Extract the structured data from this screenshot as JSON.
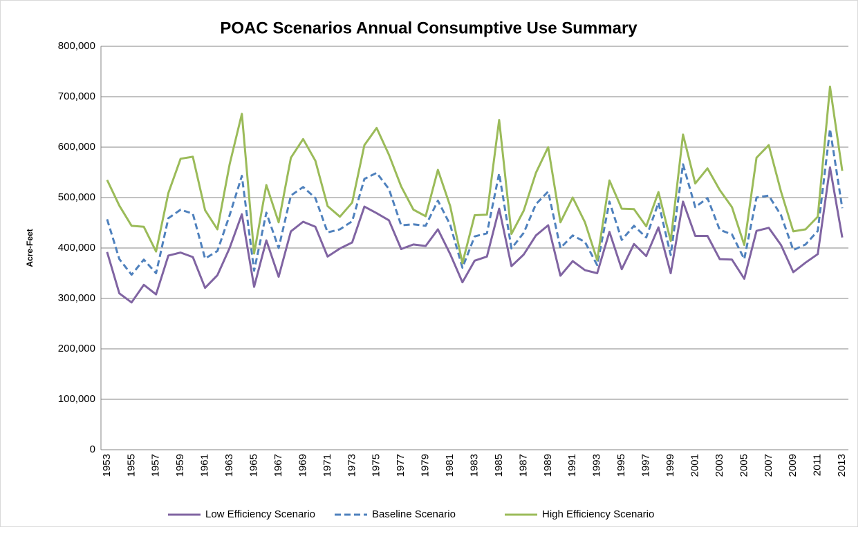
{
  "chart_data": {
    "type": "line",
    "title": "POAC Scenarios Annual Consumptive Use Summary",
    "y_label": "Acre-Feet",
    "categories": [
      "1953",
      null,
      "1955",
      null,
      "1957",
      null,
      "1959",
      null,
      "1961",
      null,
      "1963",
      null,
      "1965",
      null,
      "1967",
      null,
      "1969",
      null,
      "1971",
      null,
      "1973",
      null,
      "1975",
      null,
      "1977",
      null,
      "1979",
      null,
      "1981",
      null,
      "1983",
      null,
      "1985",
      null,
      "1987",
      null,
      "1989",
      null,
      "1991",
      null,
      "1993",
      null,
      "1995",
      null,
      "1997",
      null,
      "1999",
      null,
      "2001",
      null,
      "2003",
      null,
      "2005",
      null,
      "2007",
      null,
      "2009",
      null,
      "2011",
      null,
      "2013"
    ],
    "series": [
      {
        "name": "Low Efficiency Scenario",
        "color": "#8064a2",
        "dashed": false,
        "values": [
          392000,
          310000,
          292000,
          327000,
          308000,
          385000,
          391000,
          382000,
          321000,
          346000,
          400000,
          467000,
          323000,
          415000,
          343000,
          433000,
          452000,
          442000,
          383000,
          399000,
          411000,
          482000,
          469000,
          455000,
          398000,
          407000,
          404000,
          437000,
          388000,
          332000,
          375000,
          383000,
          478000,
          364000,
          387000,
          425000,
          445000,
          345000,
          374000,
          356000,
          350000,
          432000,
          358000,
          408000,
          384000,
          441000,
          350000,
          492000,
          424000,
          424000,
          378000,
          377000,
          339000,
          434000,
          440000,
          406000,
          352000,
          371000,
          388000,
          560000,
          421000
        ]
      },
      {
        "name": "Baseline Scenario",
        "color": "#4f81bd",
        "dashed": true,
        "values": [
          457000,
          378000,
          347000,
          377000,
          350000,
          459000,
          476000,
          468000,
          379000,
          394000,
          465000,
          543000,
          355000,
          470000,
          400000,
          504000,
          521000,
          499000,
          431000,
          437000,
          453000,
          537000,
          549000,
          517000,
          445000,
          447000,
          444000,
          494000,
          446000,
          361000,
          423000,
          429000,
          548000,
          399000,
          430000,
          487000,
          512000,
          400000,
          425000,
          412000,
          366000,
          492000,
          416000,
          444000,
          421000,
          490000,
          386000,
          566000,
          481000,
          499000,
          436000,
          427000,
          378000,
          500000,
          504000,
          465000,
          396000,
          407000,
          434000,
          636000,
          479000
        ]
      },
      {
        "name": "High Efficiency Scenario",
        "color": "#9bbb59",
        "dashed": false,
        "values": [
          535000,
          484000,
          444000,
          442000,
          393000,
          509000,
          577000,
          581000,
          475000,
          437000,
          566000,
          666000,
          389000,
          525000,
          451000,
          579000,
          616000,
          573000,
          483000,
          462000,
          490000,
          604000,
          638000,
          585000,
          522000,
          476000,
          463000,
          555000,
          483000,
          370000,
          465000,
          466000,
          654000,
          428000,
          474000,
          549000,
          600000,
          451000,
          500000,
          451000,
          376000,
          534000,
          478000,
          477000,
          443000,
          511000,
          414000,
          625000,
          528000,
          558000,
          515000,
          481000,
          406000,
          579000,
          604000,
          512000,
          433000,
          437000,
          462000,
          720000,
          553000
        ]
      }
    ],
    "ylim": [
      0,
      800000
    ],
    "yticks": [
      0,
      {
        "value": 100000,
        "label": "100,000"
      },
      {
        "value": 200000,
        "label": "200,000"
      },
      {
        "value": 300000,
        "label": "300,000"
      },
      {
        "value": 400000,
        "label": "400,000"
      },
      {
        "value": 500000,
        "label": "500,000"
      },
      {
        "value": 600000,
        "label": "600,000"
      },
      {
        "value": 700000,
        "label": "700,000"
      },
      {
        "value": 800000,
        "label": "800,000"
      }
    ],
    "grid": true,
    "legend": "bottom"
  }
}
